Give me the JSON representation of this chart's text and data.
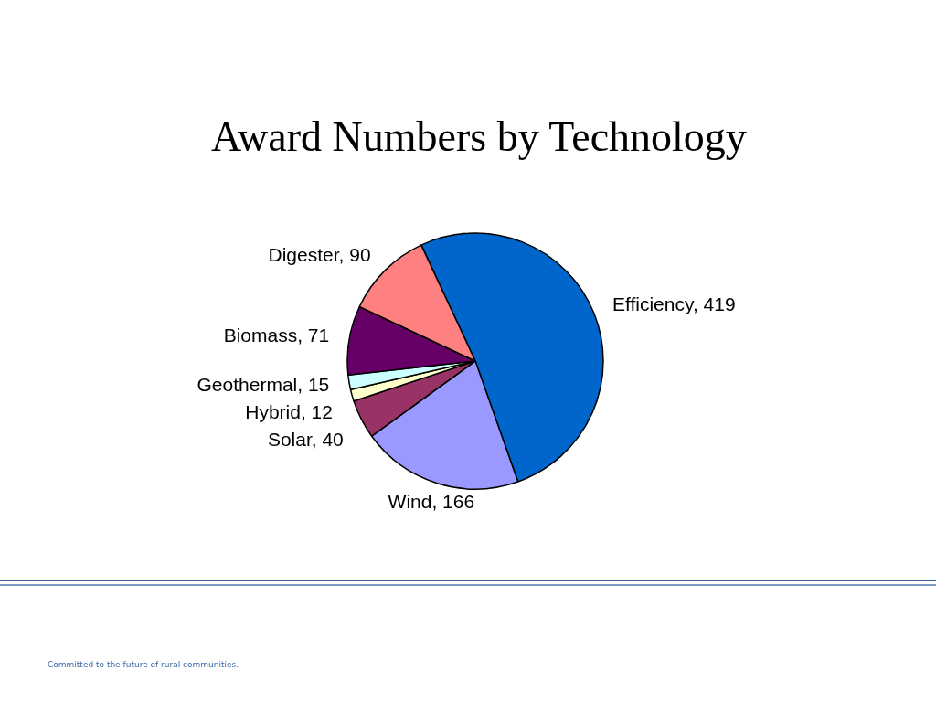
{
  "chart_data": {
    "type": "pie",
    "title": "Award Numbers by Technology",
    "categories": [
      "Efficiency",
      "Wind",
      "Solar",
      "Hybrid",
      "Geothermal",
      "Biomass",
      "Digester"
    ],
    "values": [
      419,
      166,
      40,
      12,
      15,
      71,
      90
    ],
    "value_labels": [
      ", 419",
      ", 166",
      ", 40",
      ", 12",
      ", 15",
      ", 71",
      ", 90"
    ],
    "colors": [
      "#0066cc",
      "#9999ff",
      "#993366",
      "#ffffcc",
      "#ccffff",
      "#660066",
      "#ff8080"
    ],
    "annotations": [
      "Committed to the future of rural communities."
    ]
  }
}
